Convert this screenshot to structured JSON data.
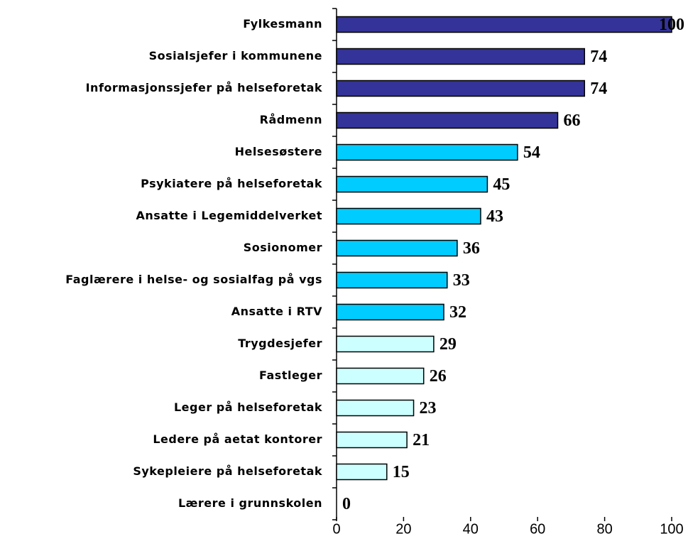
{
  "chart_data": {
    "type": "bar",
    "orientation": "horizontal",
    "categories": [
      "Fylkesmann",
      "Sosialsjefer i kommunene",
      "Informasjonssjefer på helseforetak",
      "Rådmenn",
      "Helsesøstere",
      "Psykiatere på helseforetak",
      "Ansatte i Legemiddelverket",
      "Sosionomer",
      "Faglærere i helse- og sosialfag på vgs",
      "Ansatte i RTV",
      "Trygdesjefer",
      "Fastleger",
      "Leger på helseforetak",
      "Ledere på aetat kontorer",
      "Sykepleiere på helseforetak",
      "Lærere i grunnskolen"
    ],
    "values": [
      100,
      74,
      74,
      66,
      54,
      45,
      43,
      36,
      33,
      32,
      29,
      26,
      23,
      21,
      15,
      0
    ],
    "colors": [
      "#333399",
      "#333399",
      "#333399",
      "#333399",
      "#00ccff",
      "#00ccff",
      "#00ccff",
      "#00ccff",
      "#00ccff",
      "#00ccff",
      "#ccffff",
      "#ccffff",
      "#ccffff",
      "#ccffff",
      "#ccffff",
      "#ccffff"
    ],
    "xlim": [
      0,
      100
    ],
    "xticks": [
      0,
      20,
      40,
      60,
      80,
      100
    ]
  }
}
